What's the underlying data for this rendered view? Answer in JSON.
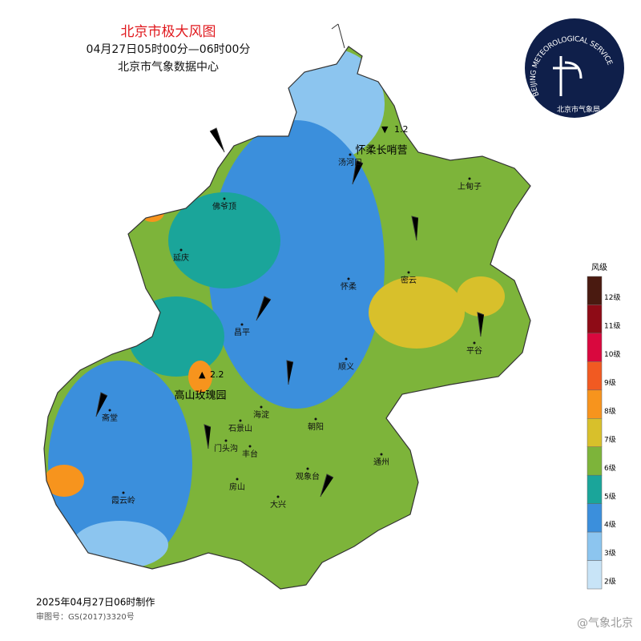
{
  "header": {
    "title": "北京市极大风图",
    "time_range": "04月27日05时00分—06时00分",
    "issuer": "北京市气象数据中心"
  },
  "logo": {
    "ring_text": "BEIJING METEOROLOGICAL SERVICE",
    "name": "北京市气象局"
  },
  "stations": [
    {
      "label": "怀柔长哨营",
      "value": "1.2"
    },
    {
      "label": "高山玫瑰园",
      "value": "2.2"
    }
  ],
  "places": [
    "汤河口",
    "上甸子",
    "佛爷顶",
    "延庆",
    "怀柔",
    "密云",
    "昌平",
    "平谷",
    "顺义",
    "斋堂",
    "海淀",
    "石景山",
    "朝阳",
    "门头沟",
    "丰台",
    "通州",
    "观象台",
    "房山",
    "大兴",
    "霞云岭"
  ],
  "legend": {
    "title": "风级",
    "levels": [
      {
        "label": "12级",
        "color": "#4a1a10"
      },
      {
        "label": "11级",
        "color": "#8e0b16"
      },
      {
        "label": "10级",
        "color": "#d9083e"
      },
      {
        "label": "9级",
        "color": "#f15a22"
      },
      {
        "label": "8级",
        "color": "#f7941d"
      },
      {
        "label": "7级",
        "color": "#d8c02b"
      },
      {
        "label": "6级",
        "color": "#7db43a"
      },
      {
        "label": "5级",
        "color": "#1aa59a"
      },
      {
        "label": "4级",
        "color": "#3b8fdc"
      },
      {
        "label": "3级",
        "color": "#8cc5ef"
      },
      {
        "label": "2级",
        "color": "#c8e4f7"
      }
    ]
  },
  "footer": {
    "made": "2025年04月27日06时制作",
    "approval": "审图号：GS(2017)3320号",
    "watermark": "@气象北京"
  }
}
